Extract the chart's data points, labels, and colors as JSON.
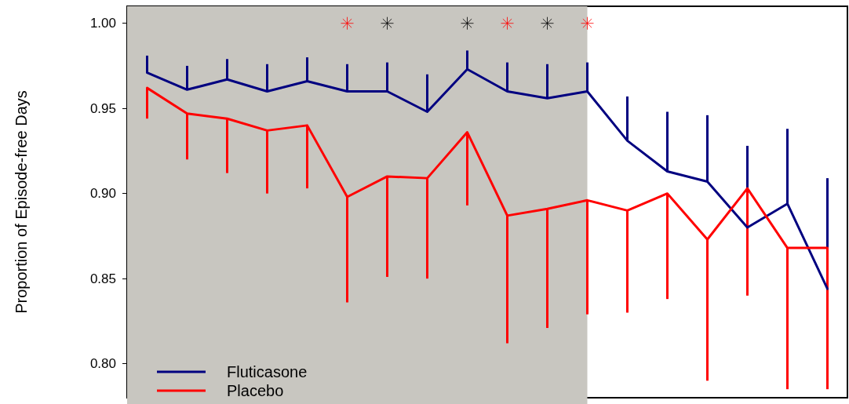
{
  "chart_data": {
    "type": "line",
    "ylabel": "Proportion of Episode-free Days",
    "categories": [
      null,
      null,
      null,
      null,
      null,
      null,
      null,
      null,
      null,
      null,
      null,
      null,
      null,
      null,
      null,
      null,
      null,
      null
    ],
    "ylim": [
      0.78,
      1.01
    ],
    "yticks": [
      {
        "value": 0.8,
        "label": "0.80"
      },
      {
        "value": 0.85,
        "label": "0.85"
      },
      {
        "value": 0.9,
        "label": "0.90"
      },
      {
        "value": 0.95,
        "label": "0.95"
      },
      {
        "value": 1,
        "label": "1.00"
      }
    ],
    "grid": false,
    "legend": "bottom left",
    "marker": "none",
    "series": [
      {
        "name": "Fluticasone",
        "color": "#000080",
        "values": [
          0.971,
          0.961,
          0.967,
          0.96,
          0.966,
          0.96,
          0.96,
          0.948,
          0.973,
          0.96,
          0.956,
          0.96,
          0.931,
          0.913,
          0.907,
          0.88,
          0.894,
          0.844
        ],
        "errors": [
          [
            0.971,
            0.981
          ],
          [
            0.961,
            0.975
          ],
          [
            0.967,
            0.979
          ],
          [
            0.96,
            0.976
          ],
          [
            0.966,
            0.98
          ],
          [
            0.96,
            0.976
          ],
          [
            0.96,
            0.977
          ],
          [
            0.948,
            0.97
          ],
          [
            0.973,
            0.984
          ],
          [
            0.96,
            0.977
          ],
          [
            0.956,
            0.976
          ],
          [
            0.96,
            0.977
          ],
          [
            0.931,
            0.957
          ],
          [
            0.913,
            0.948
          ],
          [
            0.907,
            0.946
          ],
          [
            0.88,
            0.928
          ],
          [
            0.894,
            0.938
          ],
          [
            0.844,
            0.909
          ]
        ]
      },
      {
        "name": "Placebo",
        "color": "#ff0000",
        "values": [
          0.962,
          0.947,
          0.944,
          0.937,
          0.94,
          0.898,
          0.91,
          0.909,
          0.936,
          0.887,
          0.891,
          0.896,
          0.89,
          0.9,
          0.873,
          0.903,
          0.868,
          0.868
        ],
        "errors": [
          [
            0.944,
            0.962
          ],
          [
            0.92,
            0.947
          ],
          [
            0.912,
            0.944
          ],
          [
            0.9,
            0.937
          ],
          [
            0.903,
            0.94
          ],
          [
            0.836,
            0.898
          ],
          [
            0.851,
            0.91
          ],
          [
            0.85,
            0.909
          ],
          [
            0.893,
            0.936
          ],
          [
            0.812,
            0.887
          ],
          [
            0.821,
            0.891
          ],
          [
            0.829,
            0.896
          ],
          [
            0.83,
            0.89
          ],
          [
            0.838,
            0.9
          ],
          [
            0.79,
            0.873
          ],
          [
            0.84,
            0.903
          ],
          [
            0.785,
            0.868
          ],
          [
            0.785,
            0.868
          ]
        ]
      },
      {
        "type": "scatter",
        "marker": "cross",
        "color": "#ff0000",
        "values": [
          null,
          null,
          null,
          null,
          null,
          1.0,
          null,
          null,
          null,
          1.0,
          null,
          1.0,
          null,
          null,
          null,
          null,
          null,
          null
        ]
      },
      {
        "type": "scatter",
        "marker": "cross",
        "color": "#000000",
        "values": [
          null,
          null,
          null,
          null,
          null,
          null,
          1.0,
          null,
          1.0,
          null,
          1.0,
          null,
          null,
          null,
          null,
          null,
          null,
          null
        ]
      }
    ]
  }
}
